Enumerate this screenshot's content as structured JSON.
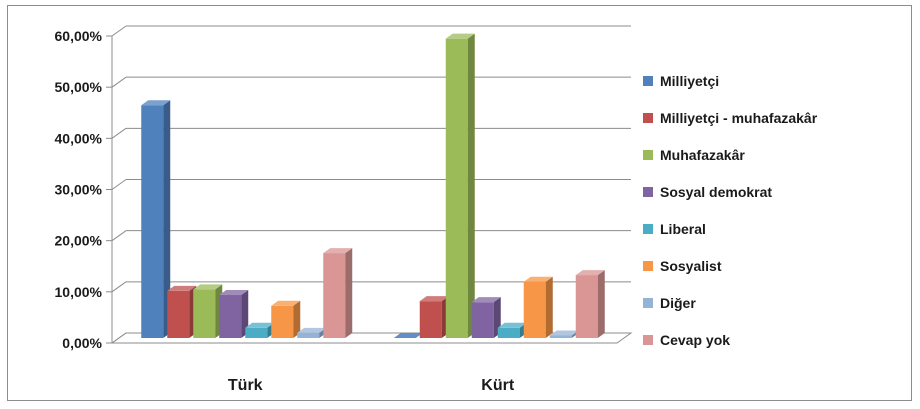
{
  "chart_data": {
    "type": "bar",
    "style": "3d-clustered-column",
    "categories": [
      "Türk",
      "Kürt"
    ],
    "ylim": [
      0,
      60
    ],
    "yticks": [
      "0,00%",
      "10,00%",
      "20,00%",
      "30,00%",
      "40,00%",
      "50,00%",
      "60,00%"
    ],
    "legend_position": "right",
    "grid": true,
    "series": [
      {
        "name": "Milliyetçi",
        "color": "#4F81BD",
        "values": [
          45.5,
          0.0
        ]
      },
      {
        "name": "Milliyetçi - muhafazakâr",
        "color": "#C0504D",
        "values": [
          9.2,
          7.2
        ]
      },
      {
        "name": "Muhafazakâr",
        "color": "#9BBB59",
        "values": [
          9.5,
          58.5
        ]
      },
      {
        "name": "Sosyal demokrat",
        "color": "#8064A2",
        "values": [
          8.4,
          7.0
        ]
      },
      {
        "name": "Liberal",
        "color": "#4BACC6",
        "values": [
          2.0,
          2.0
        ]
      },
      {
        "name": "Sosyalist",
        "color": "#F79646",
        "values": [
          6.3,
          11.0
        ]
      },
      {
        "name": "Diğer",
        "color": "#95B3D7",
        "values": [
          1.0,
          0.5
        ]
      },
      {
        "name": "Cevap yok",
        "color": "#D99694",
        "values": [
          16.6,
          12.3
        ]
      }
    ]
  }
}
